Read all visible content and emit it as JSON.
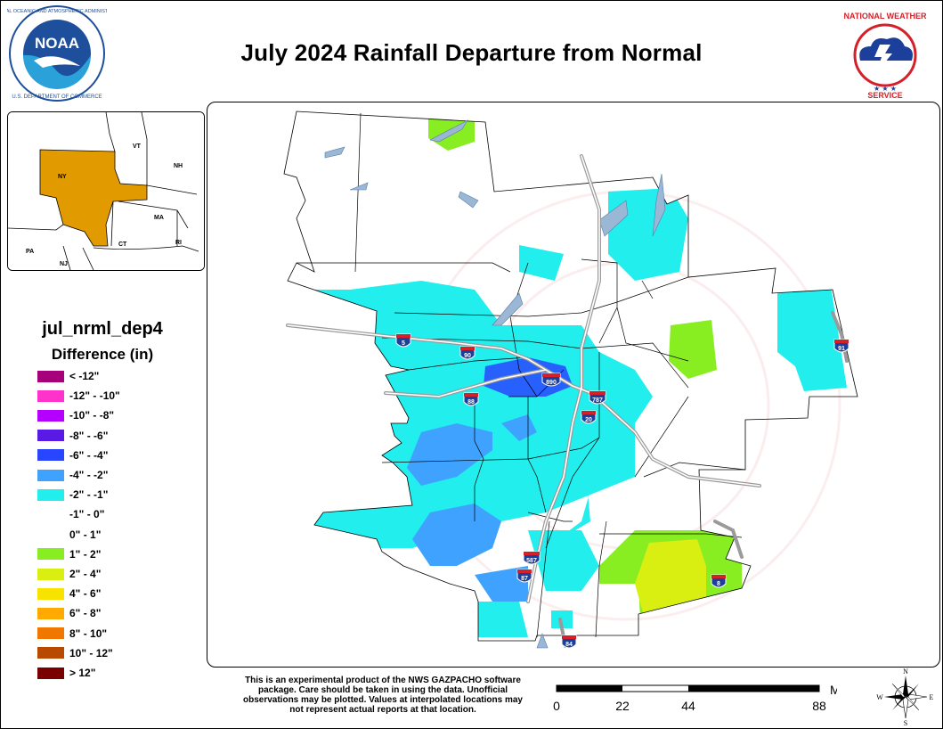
{
  "title": "July 2024 Rainfall Departure from Normal",
  "noaa": {
    "name": "NOAA",
    "ring_text": "NATIONAL OCEANIC AND ATMOSPHERIC ADMINISTRATION · U.S. DEPARTMENT OF COMMERCE",
    "colors": {
      "ring": "#ffffff",
      "blue": "#1e4f9c",
      "sky": "#2aa1d8"
    }
  },
  "nws": {
    "ring_text": "NATIONAL WEATHER SERVICE",
    "colors": {
      "red": "#d5202a",
      "blue": "#1b3f9a"
    }
  },
  "inset": {
    "states": [
      "VT",
      "NH",
      "NY",
      "MA",
      "CT",
      "RI",
      "PA",
      "NJ"
    ],
    "highlight_color": "#e19a00"
  },
  "legend": {
    "layer_name": "jul_nrml_dep4",
    "units_title": "Difference (in)",
    "items": [
      {
        "label": "< -12\"",
        "color": "#a6007a"
      },
      {
        "label": "-12\" - -10\"",
        "color": "#ff33cc"
      },
      {
        "label": "-10\" - -8\"",
        "color": "#b300ff"
      },
      {
        "label": "-8\" - -6\"",
        "color": "#5a1ae6"
      },
      {
        "label": "-6\" - -4\"",
        "color": "#2846ff"
      },
      {
        "label": "-4\" - -2\"",
        "color": "#3fa2ff"
      },
      {
        "label": "-2\" - -1\"",
        "color": "#22eeee"
      },
      {
        "label": "-1\" - 0\"",
        "color": "#ffffff"
      },
      {
        "label": "0\" - 1\"",
        "color": "#ffffff"
      },
      {
        "label": "1\" - 2\"",
        "color": "#88ee22"
      },
      {
        "label": "2\" - 4\"",
        "color": "#d9ee11"
      },
      {
        "label": "4\" - 6\"",
        "color": "#f8e200"
      },
      {
        "label": "6\" - 8\"",
        "color": "#ffaa00"
      },
      {
        "label": "8\" - 10\"",
        "color": "#f07800"
      },
      {
        "label": "10\" - 12\"",
        "color": "#b84a00"
      },
      {
        "label": "> 12\"",
        "color": "#7a0000"
      }
    ]
  },
  "map": {
    "interstates": [
      "5",
      "90",
      "890",
      "88",
      "787",
      "20",
      "91",
      "87",
      "587",
      "84",
      "8"
    ],
    "watermark": "NATIONAL WEATHER SERVICE · U.S. DEPARTMENT OF COMMERCE",
    "highway_color": "#9a9a9a"
  },
  "disclaimer": "This is an experimental product of the NWS GAZPACHO software package. Care should be taken in using the data. Unofficial observations may be plotted. Values at interpolated locations may not represent actual reports at that location.",
  "scale": {
    "unit": "Miles",
    "ticks": [
      "0",
      "22",
      "44",
      "88"
    ]
  },
  "compass": {
    "n": "N",
    "s": "S",
    "e": "E",
    "w": "W"
  }
}
